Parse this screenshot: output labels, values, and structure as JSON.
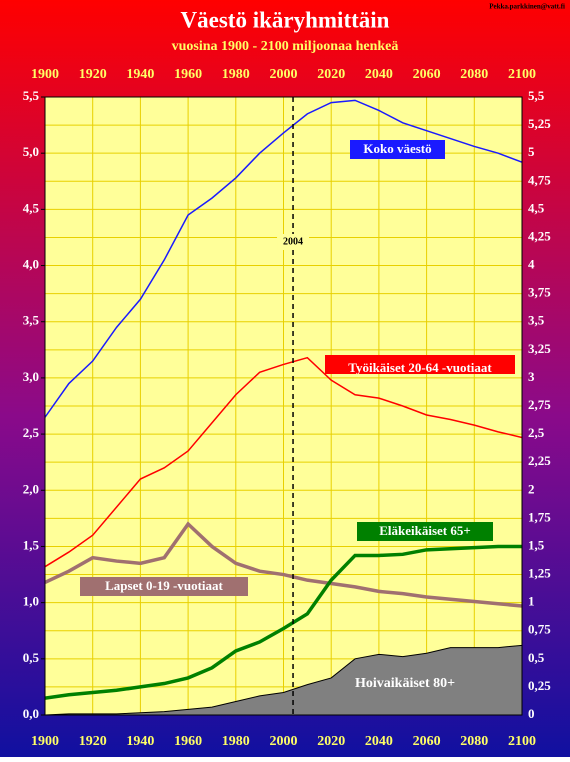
{
  "chart_data": {
    "type": "line",
    "title": "Väestö ikäryhmittäin",
    "subtitle": "vuosina 1900 - 2100 miljoonaa henkeä",
    "credit": "Pekka.parkkinen@vatt.fi",
    "x": [
      1900,
      1910,
      1920,
      1930,
      1940,
      1950,
      1960,
      1970,
      1980,
      1990,
      2000,
      2010,
      2020,
      2030,
      2040,
      2050,
      2060,
      2070,
      2080,
      2090,
      2100
    ],
    "series": [
      {
        "name": "Koko väestö",
        "color": "#1a1aff",
        "values": [
          2.65,
          2.95,
          3.15,
          3.45,
          3.7,
          4.05,
          4.45,
          4.6,
          4.78,
          5.0,
          5.18,
          5.35,
          5.45,
          5.47,
          5.38,
          5.27,
          5.2,
          5.13,
          5.06,
          5.0,
          4.92
        ]
      },
      {
        "name": "Työikäiset 20-64 -vuotiaat",
        "color": "#ff0000",
        "values": [
          1.32,
          1.45,
          1.6,
          1.85,
          2.1,
          2.2,
          2.35,
          2.6,
          2.85,
          3.05,
          3.12,
          3.18,
          2.98,
          2.85,
          2.82,
          2.75,
          2.67,
          2.63,
          2.58,
          2.52,
          2.47
        ]
      },
      {
        "name": "Lapset 0-19 -vuotiaat",
        "color": "#a07070",
        "values": [
          1.18,
          1.28,
          1.4,
          1.37,
          1.35,
          1.4,
          1.7,
          1.5,
          1.35,
          1.28,
          1.25,
          1.2,
          1.17,
          1.14,
          1.1,
          1.08,
          1.05,
          1.03,
          1.01,
          0.99,
          0.97
        ]
      },
      {
        "name": "Eläkeikäiset 65+",
        "color": "#008000",
        "values": [
          0.15,
          0.18,
          0.2,
          0.22,
          0.25,
          0.28,
          0.33,
          0.42,
          0.57,
          0.65,
          0.77,
          0.9,
          1.2,
          1.42,
          1.42,
          1.43,
          1.47,
          1.48,
          1.49,
          1.5,
          1.5
        ]
      },
      {
        "name": "Hoivaikäiset 80+",
        "color": "#808080",
        "area": true,
        "values": [
          0.0,
          0.01,
          0.01,
          0.01,
          0.02,
          0.03,
          0.05,
          0.07,
          0.12,
          0.17,
          0.2,
          0.27,
          0.33,
          0.5,
          0.54,
          0.52,
          0.55,
          0.6,
          0.6,
          0.6,
          0.62
        ]
      }
    ],
    "xlim": [
      1900,
      2100
    ],
    "xticks": [
      1900,
      1920,
      1940,
      1960,
      1980,
      2000,
      2020,
      2040,
      2060,
      2080,
      2100
    ],
    "ylim": [
      0,
      5.5
    ],
    "yticks": [
      {
        "value": 0,
        "label": "0,0"
      },
      {
        "value": 0.5,
        "label": "0,5"
      },
      {
        "value": 1,
        "label": "1,0"
      },
      {
        "value": 1.5,
        "label": "1,5"
      },
      {
        "value": 2,
        "label": "2,0"
      },
      {
        "value": 2.5,
        "label": "2,5"
      },
      {
        "value": 3,
        "label": "3,0"
      },
      {
        "value": 3.5,
        "label": "3,5"
      },
      {
        "value": 4,
        "label": "4,0"
      },
      {
        "value": 4.5,
        "label": "4,5"
      },
      {
        "value": 5,
        "label": "5,0"
      },
      {
        "value": 5.5,
        "label": "5,5"
      }
    ],
    "y2lim": [
      0,
      5.5
    ],
    "y2ticks": [
      0,
      {
        "value": 0.25,
        "label": "0,25"
      },
      {
        "value": 0.5,
        "label": "0,5"
      },
      {
        "value": 0.75,
        "label": "0,75"
      },
      1,
      {
        "value": 1.25,
        "label": "1,25"
      },
      {
        "value": 1.5,
        "label": "1,5"
      },
      {
        "value": 1.75,
        "label": "1,75"
      },
      2,
      {
        "value": 2.25,
        "label": "2,25"
      },
      {
        "value": 2.5,
        "label": "2,5"
      },
      {
        "value": 2.75,
        "label": "2,75"
      },
      3,
      {
        "value": 3.25,
        "label": "3,25"
      },
      {
        "value": 3.5,
        "label": "3,5"
      },
      {
        "value": 3.75,
        "label": "3,75"
      },
      4,
      {
        "value": 4.25,
        "label": "4,25"
      },
      {
        "value": 4.5,
        "label": "4,5"
      },
      {
        "value": 4.75,
        "label": "4,75"
      },
      5,
      {
        "value": 5.25,
        "label": "5,25"
      },
      {
        "value": 5.5,
        "label": "5,5"
      }
    ],
    "vline": 2004,
    "grid": true
  }
}
